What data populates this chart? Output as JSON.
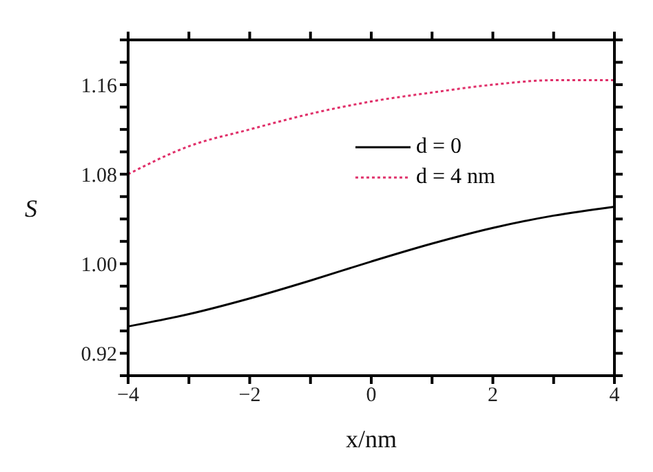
{
  "chart_data": {
    "type": "line",
    "xlabel": "x/nm",
    "ylabel": "S",
    "x": [
      -4,
      -3,
      -2,
      -1,
      0,
      1,
      2,
      3,
      4
    ],
    "series": [
      {
        "name": "d = 0",
        "color": "#000000",
        "line_style": "solid",
        "values": [
          0.944,
          0.955,
          0.969,
          0.985,
          1.002,
          1.018,
          1.032,
          1.043,
          1.051
        ]
      },
      {
        "name": "d = 4 nm",
        "color": "#e0306a",
        "line_style": "dotted",
        "values": [
          1.08,
          1.105,
          1.12,
          1.134,
          1.145,
          1.153,
          1.16,
          1.164,
          1.164
        ]
      }
    ],
    "xlim": [
      -4,
      4
    ],
    "xticks": [
      -4,
      {
        "value": -3,
        "label": null
      },
      -2,
      {
        "value": -1,
        "label": null
      },
      0,
      {
        "value": 1,
        "label": null
      },
      2,
      {
        "value": 3,
        "label": null
      },
      4
    ],
    "ylim": [
      0.9,
      1.2
    ],
    "yticks": [
      {
        "value": 0.9,
        "label": null
      },
      {
        "value": 0.92,
        "label": "0.92"
      },
      {
        "value": 0.94,
        "label": null
      },
      {
        "value": 0.96,
        "label": null
      },
      {
        "value": 0.98,
        "label": null
      },
      {
        "value": 1.0,
        "label": "1.00"
      },
      {
        "value": 1.02,
        "label": null
      },
      {
        "value": 1.04,
        "label": null
      },
      {
        "value": 1.06,
        "label": null
      },
      {
        "value": 1.08,
        "label": "1.08"
      },
      {
        "value": 1.1,
        "label": null
      },
      {
        "value": 1.12,
        "label": null
      },
      {
        "value": 1.14,
        "label": null
      },
      {
        "value": 1.16,
        "label": "1.16"
      },
      {
        "value": 1.18,
        "label": null
      },
      {
        "value": 1.2,
        "label": null
      }
    ],
    "grid": false,
    "legend": "top right",
    "marker": "none"
  }
}
